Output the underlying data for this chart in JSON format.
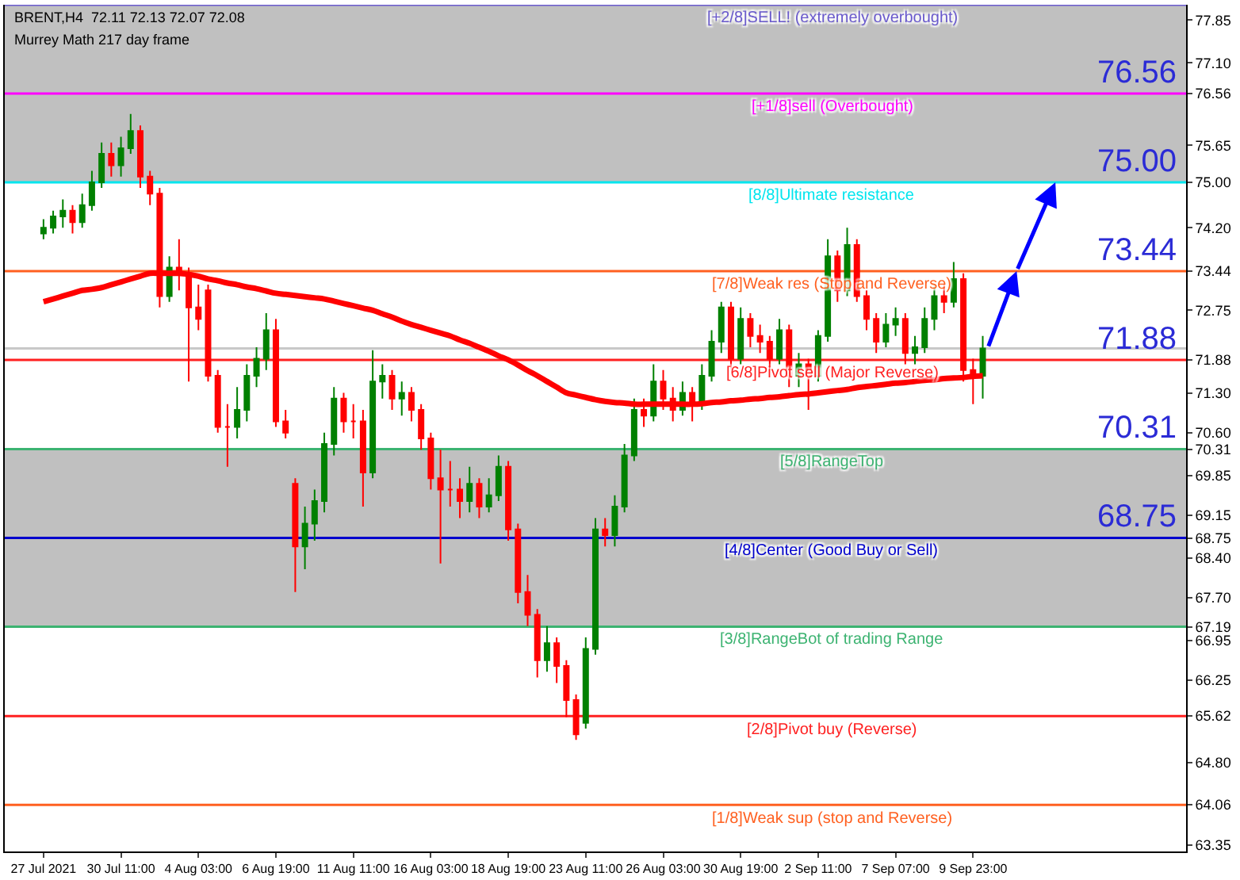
{
  "chart_data": {
    "type": "candlestick",
    "title": "BRENT,H4  72.11 72.13 72.07 72.08",
    "subtitle": "Murrey Math 217 day frame",
    "categories": [
      "27 Jul 2021",
      null,
      null,
      null,
      null,
      null,
      null,
      null,
      "30 Jul 11:00",
      null,
      null,
      null,
      null,
      null,
      null,
      null,
      "4 Aug 03:00",
      null,
      null,
      null,
      null,
      null,
      null,
      null,
      "6 Aug 19:00",
      null,
      null,
      null,
      null,
      null,
      null,
      null,
      "11 Aug 11:00",
      null,
      null,
      null,
      null,
      null,
      null,
      null,
      "16 Aug 03:00",
      null,
      null,
      null,
      null,
      null,
      null,
      null,
      "18 Aug 19:00",
      null,
      null,
      null,
      null,
      null,
      null,
      null,
      "23 Aug 11:00",
      null,
      null,
      null,
      null,
      null,
      null,
      null,
      "26 Aug 03:00",
      null,
      null,
      null,
      null,
      null,
      null,
      null,
      "30 Aug 19:00",
      null,
      null,
      null,
      null,
      null,
      null,
      null,
      "2 Sep 11:00",
      null,
      null,
      null,
      null,
      null,
      null,
      null,
      "7 Sep 07:00",
      null,
      null,
      null,
      null,
      null,
      null,
      null,
      "9 Sep 23:00",
      null
    ],
    "colors": [
      "#008000",
      "#008000",
      "#008000",
      "#ff0000",
      "#008000",
      "#008000",
      "#008000",
      "#ff0000",
      "#008000",
      "#008000",
      "#ff0000",
      "#ff0000",
      "#ff0000",
      "#008000",
      "#ff0000",
      "#ff0000",
      "#ff0000",
      "#ff0000",
      "#ff0000",
      "#ff0000",
      "#008000",
      "#008000",
      "#008000",
      "#008000",
      "#ff0000",
      "#ff0000",
      "#ff0000",
      "#008000",
      "#008000",
      "#008000",
      "#008000",
      "#ff0000",
      "#ff0000",
      "#ff0000",
      "#008000",
      "#008000",
      "#ff0000",
      "#008000",
      "#ff0000",
      "#ff0000",
      "#ff0000",
      "#ff0000",
      "#ff0000",
      "#ff0000",
      "#008000",
      "#ff0000",
      "#008000",
      "#008000",
      "#ff0000",
      "#ff0000",
      "#ff0000",
      "#ff0000",
      "#008000",
      "#ff0000",
      "#ff0000",
      "#ff0000",
      "#008000",
      "#008000",
      "#ff0000",
      "#008000",
      "#008000",
      "#008000",
      "#ff0000",
      "#008000",
      "#ff0000",
      "#ff0000",
      "#008000",
      "#ff0000",
      "#008000",
      "#008000",
      "#008000",
      "#ff0000",
      "#008000",
      "#ff0000",
      "#ff0000",
      "#ff0000",
      "#008000",
      "#ff0000",
      "#008000",
      "#ff0000",
      "#008000",
      "#008000",
      "#ff0000",
      "#008000",
      "#ff0000",
      "#ff0000",
      "#ff0000",
      "#008000",
      "#008000",
      "#ff0000",
      "#008000",
      "#008000",
      "#008000",
      "#ff0000",
      "#008000",
      "#ff0000",
      "#ff0000",
      "#008000"
    ],
    "ohlc": [
      [
        74.1,
        74.35,
        74.0,
        74.2
      ],
      [
        74.2,
        74.5,
        74.1,
        74.4
      ],
      [
        74.4,
        74.7,
        74.2,
        74.5
      ],
      [
        74.5,
        74.6,
        74.1,
        74.3
      ],
      [
        74.3,
        74.8,
        74.2,
        74.6
      ],
      [
        74.6,
        75.2,
        74.5,
        75.0
      ],
      [
        75.0,
        75.7,
        74.9,
        75.5
      ],
      [
        75.5,
        75.7,
        75.1,
        75.3
      ],
      [
        75.3,
        75.8,
        75.1,
        75.6
      ],
      [
        75.6,
        76.2,
        75.5,
        75.9
      ],
      [
        75.9,
        76.0,
        74.9,
        75.1
      ],
      [
        75.1,
        75.2,
        74.6,
        74.8
      ],
      [
        74.8,
        74.9,
        72.8,
        73.0
      ],
      [
        73.0,
        73.7,
        72.9,
        73.5
      ],
      [
        73.5,
        74.0,
        73.1,
        73.4
      ],
      [
        73.4,
        73.5,
        71.5,
        72.8
      ],
      [
        72.8,
        73.2,
        72.4,
        72.6
      ],
      [
        73.1,
        73.2,
        71.5,
        71.6
      ],
      [
        71.6,
        71.7,
        70.6,
        70.7
      ],
      [
        70.7,
        71.1,
        70.0,
        70.7
      ],
      [
        70.7,
        71.4,
        70.5,
        71.0
      ],
      [
        71.0,
        71.8,
        70.8,
        71.6
      ],
      [
        71.6,
        72.1,
        71.4,
        71.9
      ],
      [
        71.9,
        72.7,
        71.7,
        72.4
      ],
      [
        72.4,
        72.6,
        70.7,
        70.8
      ],
      [
        70.8,
        71.0,
        70.5,
        70.6
      ],
      [
        69.7,
        69.8,
        67.8,
        68.6
      ],
      [
        68.6,
        69.3,
        68.2,
        69.0
      ],
      [
        69.0,
        69.6,
        68.7,
        69.4
      ],
      [
        69.4,
        70.6,
        69.2,
        70.4
      ],
      [
        70.4,
        71.4,
        70.2,
        71.2
      ],
      [
        71.2,
        71.3,
        70.6,
        70.8
      ],
      [
        70.8,
        71.1,
        70.5,
        70.8
      ],
      [
        70.8,
        71.0,
        69.3,
        69.9
      ],
      [
        69.9,
        72.05,
        69.8,
        71.5
      ],
      [
        71.5,
        71.8,
        71.2,
        71.6
      ],
      [
        71.6,
        71.7,
        71.0,
        71.2
      ],
      [
        71.2,
        71.5,
        70.9,
        71.3
      ],
      [
        71.3,
        71.4,
        70.8,
        71.0
      ],
      [
        71.0,
        71.1,
        70.3,
        70.5
      ],
      [
        70.5,
        70.6,
        69.6,
        69.8
      ],
      [
        69.8,
        70.3,
        68.3,
        69.6
      ],
      [
        69.6,
        70.1,
        69.3,
        69.6
      ],
      [
        69.6,
        69.8,
        69.1,
        69.4
      ],
      [
        69.4,
        70.0,
        69.2,
        69.7
      ],
      [
        69.7,
        69.8,
        69.1,
        69.3
      ],
      [
        69.3,
        69.8,
        69.2,
        69.5
      ],
      [
        69.5,
        70.2,
        69.4,
        70.0
      ],
      [
        70.0,
        70.1,
        68.7,
        68.9
      ],
      [
        68.9,
        69.0,
        67.6,
        67.8
      ],
      [
        67.8,
        68.1,
        67.2,
        67.4
      ],
      [
        67.4,
        67.5,
        66.3,
        66.6
      ],
      [
        66.6,
        67.2,
        66.4,
        66.9
      ],
      [
        66.9,
        67.0,
        66.2,
        66.5
      ],
      [
        66.5,
        66.6,
        65.6,
        65.9
      ],
      [
        65.9,
        66.0,
        65.2,
        65.3
      ],
      [
        65.5,
        67.0,
        65.4,
        66.8
      ],
      [
        66.8,
        69.1,
        66.7,
        68.9
      ],
      [
        68.9,
        69.1,
        68.6,
        68.8
      ],
      [
        68.8,
        69.5,
        68.6,
        69.3
      ],
      [
        69.3,
        70.4,
        69.2,
        70.2
      ],
      [
        70.2,
        71.2,
        70.1,
        71.0
      ],
      [
        71.0,
        71.2,
        70.7,
        70.9
      ],
      [
        70.9,
        71.8,
        70.8,
        71.5
      ],
      [
        71.5,
        71.7,
        71.0,
        71.2
      ],
      [
        71.2,
        71.4,
        70.8,
        71.0
      ],
      [
        71.0,
        71.5,
        70.9,
        71.3
      ],
      [
        71.3,
        71.4,
        70.8,
        71.1
      ],
      [
        71.1,
        71.8,
        71.0,
        71.6
      ],
      [
        71.6,
        72.4,
        71.5,
        72.2
      ],
      [
        72.2,
        72.9,
        72.0,
        72.8
      ],
      [
        72.8,
        72.9,
        71.7,
        71.9
      ],
      [
        71.9,
        72.8,
        71.8,
        72.6
      ],
      [
        72.6,
        72.7,
        72.1,
        72.3
      ],
      [
        72.3,
        72.5,
        72.0,
        72.2
      ],
      [
        72.2,
        72.3,
        71.7,
        71.9
      ],
      [
        71.9,
        72.6,
        71.8,
        72.4
      ],
      [
        72.4,
        72.5,
        71.4,
        71.6
      ],
      [
        71.6,
        72.0,
        71.4,
        71.8
      ],
      [
        71.8,
        71.9,
        71.0,
        71.6
      ],
      [
        71.6,
        72.4,
        71.5,
        72.3
      ],
      [
        72.3,
        74.0,
        72.2,
        73.7
      ],
      [
        73.7,
        73.8,
        72.9,
        73.1
      ],
      [
        73.1,
        74.2,
        73.0,
        73.9
      ],
      [
        73.9,
        74.0,
        72.9,
        73.0
      ],
      [
        73.0,
        73.1,
        72.4,
        72.6
      ],
      [
        72.6,
        72.7,
        72.0,
        72.2
      ],
      [
        72.2,
        72.7,
        72.1,
        72.5
      ],
      [
        72.5,
        72.8,
        72.3,
        72.6
      ],
      [
        72.6,
        72.7,
        71.8,
        72.0
      ],
      [
        72.0,
        72.3,
        71.8,
        72.1
      ],
      [
        72.1,
        72.8,
        72.0,
        72.6
      ],
      [
        72.6,
        73.2,
        72.4,
        73.0
      ],
      [
        73.0,
        73.2,
        72.7,
        72.9
      ],
      [
        72.9,
        73.6,
        72.8,
        73.3
      ],
      [
        73.3,
        73.4,
        71.5,
        71.7
      ],
      [
        71.7,
        71.9,
        71.1,
        71.6
      ],
      [
        71.6,
        72.3,
        71.2,
        72.08
      ]
    ],
    "series": [
      {
        "type": "line",
        "color": "#ff0000",
        "values": [
          72.9,
          72.95,
          73.0,
          73.05,
          73.1,
          73.12,
          73.15,
          73.2,
          73.25,
          73.3,
          73.35,
          73.4,
          73.4,
          73.4,
          73.4,
          73.38,
          73.35,
          73.3,
          73.27,
          73.23,
          73.2,
          73.16,
          73.13,
          73.09,
          73.05,
          73.03,
          73.01,
          72.99,
          72.97,
          72.95,
          72.91,
          72.87,
          72.83,
          72.79,
          72.75,
          72.69,
          72.63,
          72.56,
          72.5,
          72.45,
          72.4,
          72.35,
          72.3,
          72.23,
          72.17,
          72.1,
          72.03,
          71.95,
          71.88,
          71.79,
          71.69,
          71.6,
          71.5,
          71.4,
          71.3,
          71.26,
          71.22,
          71.18,
          71.15,
          71.13,
          71.12,
          71.1,
          71.1,
          71.1,
          71.1,
          71.1,
          71.1,
          71.1,
          71.11,
          71.13,
          71.14,
          71.16,
          71.17,
          71.19,
          71.2,
          71.22,
          71.23,
          71.25,
          71.27,
          71.28,
          71.3,
          71.32,
          71.34,
          71.36,
          71.39,
          71.41,
          71.43,
          71.45,
          71.47,
          71.48,
          71.5,
          71.52,
          71.53,
          71.55,
          71.56,
          71.57,
          71.59,
          71.6
        ]
      }
    ],
    "ylim": [
      63.24,
      78.12
    ],
    "yticks": [
      77.85,
      {
        "value": 77.1,
        "label": "77.10"
      },
      76.56,
      75.65,
      {
        "value": 75.0,
        "label": "75.00"
      },
      {
        "value": 74.2,
        "label": "74.20"
      },
      73.44,
      72.75,
      71.88,
      {
        "value": 71.3,
        "label": "71.30"
      },
      {
        "value": 70.6,
        "label": "70.60"
      },
      70.31,
      69.85,
      69.15,
      68.75,
      {
        "value": 68.4,
        "label": "68.40"
      },
      {
        "value": 67.7,
        "label": "67.70"
      },
      67.19,
      66.95,
      66.25,
      65.62,
      {
        "value": 64.8,
        "label": "64.80"
      },
      64.06,
      63.35
    ],
    "bands": [
      {
        "axis": "y",
        "from": 75.0,
        "to": 78.12,
        "color": "#c0c0c0"
      },
      {
        "axis": "y",
        "from": 67.19,
        "to": 70.31,
        "color": "#c0c0c0"
      }
    ],
    "ref_lines": [
      {
        "axis": "y",
        "value": 78.12,
        "label": "[+2/8]SELL! (extremely overbought)",
        "color": "#6a5acd"
      },
      {
        "axis": "y",
        "value": 76.56,
        "label": "[+1/8]sell (Overbought)",
        "color": "#ff00ff"
      },
      {
        "axis": "y",
        "value": 75.0,
        "label": "[8/8]Ultimate resistance",
        "color": "#00e5ee"
      },
      {
        "axis": "y",
        "value": 73.44,
        "label": "[7/8]Weak res (Stop and Reverse)",
        "color": "#ff6020"
      },
      {
        "axis": "y",
        "value": 72.08,
        "color": "#c8c8c8"
      },
      {
        "axis": "y",
        "value": 71.88,
        "label": "[6/8]Pivot sell (Major Reverse)",
        "color": "#ff2020"
      },
      {
        "axis": "y",
        "value": 70.31,
        "label": "[5/8]RangeTop",
        "color": "#3cb371"
      },
      {
        "axis": "y",
        "value": 68.75,
        "label": "[4/8]Center (Good Buy or Sell)",
        "color": "#0000cd"
      },
      {
        "axis": "y",
        "value": 67.19,
        "label": "[3/8]RangeBot of trading Range",
        "color": "#3cb371"
      },
      {
        "axis": "y",
        "value": 65.62,
        "label": "[2/8]Pivot buy (Reverse)",
        "color": "#ff2020"
      },
      {
        "axis": "y",
        "value": 64.06,
        "label": "[1/8]Weak sup (stop and Reverse)",
        "color": "#ff6020"
      }
    ],
    "annotations": [
      {
        "text": "76.56",
        "y": 76.56
      },
      {
        "text": "75.00",
        "y": 75.0
      },
      {
        "text": "73.44",
        "y": 73.44
      },
      {
        "text": "71.88",
        "y": 71.88
      },
      {
        "text": "70.31",
        "y": 70.31
      },
      {
        "text": "68.75",
        "y": 68.75
      }
    ],
    "grid": false
  }
}
